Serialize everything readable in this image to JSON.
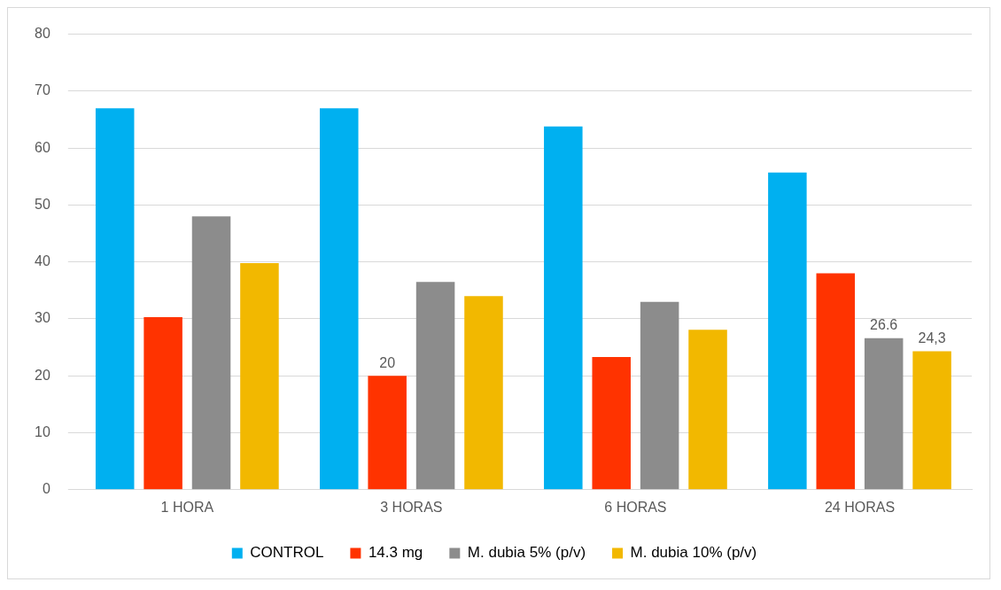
{
  "chart_data": {
    "type": "bar",
    "categories": [
      "1 HORA",
      "3 HORAS",
      "6 HORAS",
      "24 HORAS"
    ],
    "series": [
      {
        "name": "CONTROL",
        "color": "#00b0f0",
        "values": [
          67,
          67,
          63.8,
          55.7
        ]
      },
      {
        "name": "14.3 mg",
        "color": "#ff3300",
        "values": [
          30.3,
          20,
          23.3,
          38
        ],
        "value_labels": [
          null,
          "20",
          null,
          null
        ]
      },
      {
        "name": "M. dubia 5% (p/v)",
        "color": "#8c8c8c",
        "values": [
          48,
          36.5,
          33,
          26.6
        ],
        "value_labels": [
          null,
          null,
          null,
          "26.6"
        ]
      },
      {
        "name": "M. dubia 10% (p/v)",
        "color": "#f2b800",
        "values": [
          39.8,
          34,
          28.1,
          24.3
        ],
        "value_labels": [
          null,
          null,
          null,
          "24,3"
        ]
      }
    ],
    "ylim": [
      0,
      80
    ],
    "yticks": [
      0,
      10,
      20,
      30,
      40,
      50,
      60,
      70,
      80
    ],
    "grid": "y",
    "legend": "bottom"
  }
}
